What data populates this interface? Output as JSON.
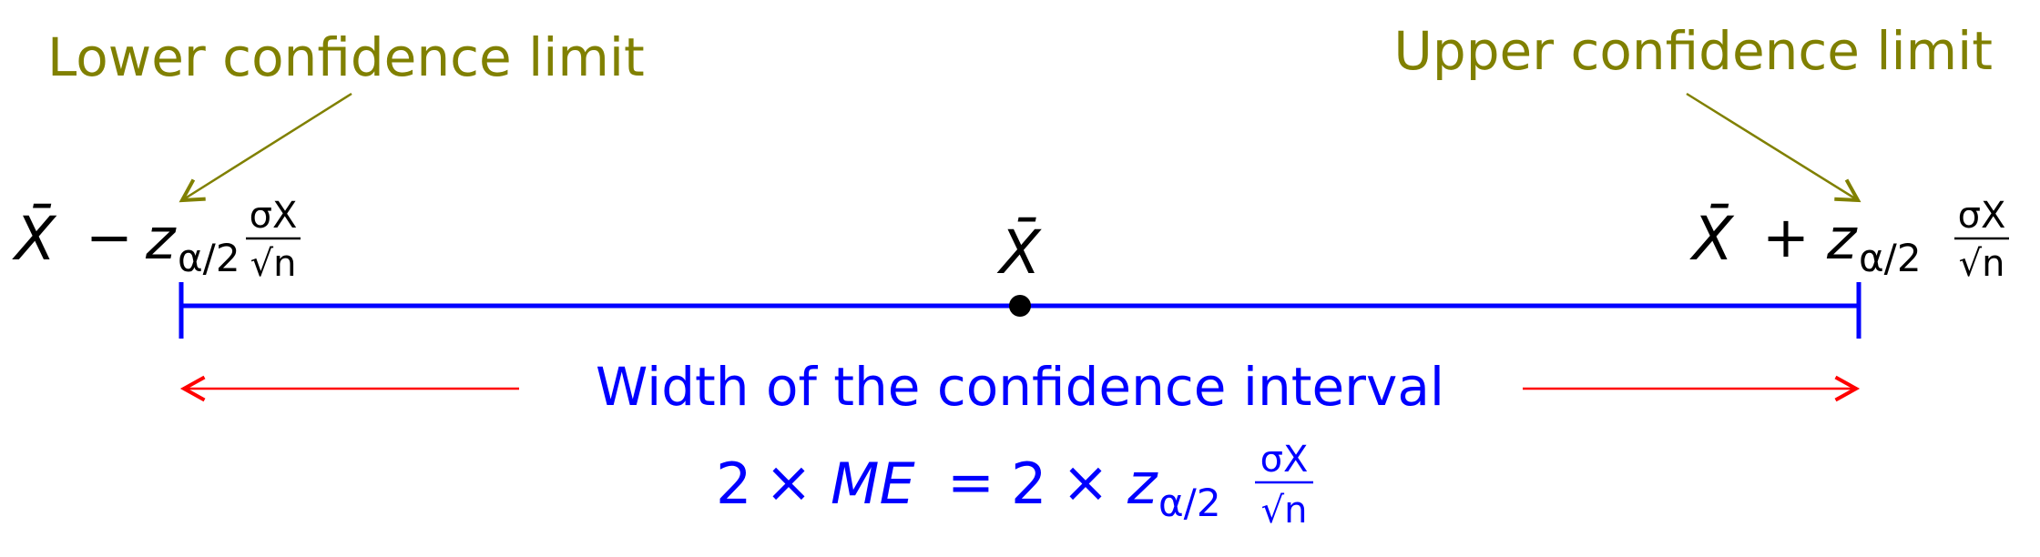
{
  "annotations": {
    "lower_limit_label": "Lower confidence limit",
    "upper_limit_label": "Upper confidence limit"
  },
  "formulas": {
    "lower_expr": {
      "xbar": "X̄",
      "op": "−",
      "z": "z",
      "z_sub": "α/2",
      "frac_num": "σX",
      "frac_den": "√n"
    },
    "center_expr": "X̄",
    "upper_expr": {
      "xbar": "X̄",
      "op": "+",
      "z": "z",
      "z_sub": "α/2",
      "frac_num": "σX",
      "frac_den": "√n"
    }
  },
  "width_label": "Width of the confidence interval",
  "width_formula": {
    "lhs_coef": "2",
    "times": "×",
    "me": "ME",
    "eq": "=",
    "rhs_coef": "2",
    "z": "z",
    "z_sub": "α/2",
    "frac_num": "σX",
    "frac_den": "√n"
  },
  "colors": {
    "annotation": "#808000",
    "interval": "#0000ff",
    "width_arrow": "#ff0000",
    "point": "#000000"
  }
}
